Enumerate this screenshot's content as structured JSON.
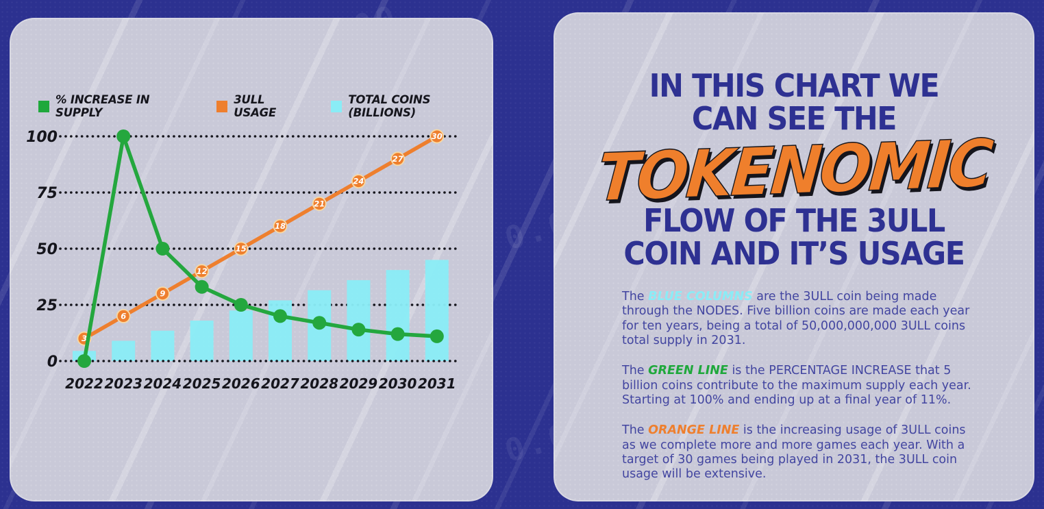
{
  "background": {
    "color": "#2c3190",
    "panel_color": "#c9c9d8",
    "ticker_text": "0.000"
  },
  "chart": {
    "legend": [
      {
        "label": "% INCREASE IN SUPPLY",
        "color": "#1fa83c"
      },
      {
        "label": "3ULL USAGE",
        "color": "#ee7f2e"
      },
      {
        "label": "TOTAL COINS (BILLIONS)",
        "color": "#8aecf6"
      }
    ]
  },
  "chart_data": {
    "type": "combo (bar + 2 line series)",
    "categories": [
      "2022",
      "2023",
      "2024",
      "2025",
      "2026",
      "2027",
      "2028",
      "2029",
      "2030",
      "2031"
    ],
    "series": [
      {
        "name": "% INCREASE IN SUPPLY",
        "type": "line",
        "color": "#24a73e",
        "values": [
          0,
          100,
          50,
          33,
          25,
          20,
          17,
          14,
          12,
          11
        ],
        "unit": "%"
      },
      {
        "name": "3ULL USAGE",
        "type": "line",
        "color": "#ee7f2e",
        "values": [
          3,
          6,
          9,
          12,
          15,
          18,
          21,
          24,
          27,
          30
        ],
        "data_labels": true
      },
      {
        "name": "TOTAL COINS (BILLIONS)",
        "type": "bar",
        "color": "#8aecf6",
        "values": [
          5,
          10,
          15,
          20,
          25,
          30,
          35,
          40,
          45,
          50
        ],
        "unit": "billions"
      }
    ],
    "title": "",
    "xlabel": "",
    "ylabel": "",
    "yticks": [
      0,
      25,
      50,
      75,
      100
    ],
    "ylim": [
      0,
      100
    ],
    "grid": "dotted horizontal lines",
    "legend_position": "top-left",
    "usage_axis_scale": 3.3333,
    "bar_axis_scale": 0.9
  },
  "description": {
    "title_line1": "IN THIS CHART WE",
    "title_line2": "CAN SEE THE",
    "title_script": "TOKENOMIC",
    "title_line3": "FLOW OF THE 3ULL",
    "title_line4": "COIN AND IT’S USAGE",
    "paragraphs": [
      {
        "prefix": "The ",
        "highlight": "BLUE COLUMNS",
        "color": "#8aecf6",
        "body": " are  the  3ULL coin being made through the NODES.  Five billion coins are made each year for ten years, being a total of 50,000,000,000 3ULL coins total supply in 2031."
      },
      {
        "prefix": "The ",
        "highlight": "GREEN LINE",
        "color": "#1fa83c",
        "body": " is  the  PERCENTAGE INCREASE that 5 billion coins contribute to the maximum supply each year.  Starting at 100% and ending up at a final year of 11%."
      },
      {
        "prefix": "The ",
        "highlight": "ORANGE LINE",
        "color": "#ee7f2e",
        "body": " is  the  increasing usage of 3ULL coins as we complete more and more games each year.  With a target of 30 games being played in 2031, the 3ULL coin usage will be extensive."
      }
    ]
  }
}
